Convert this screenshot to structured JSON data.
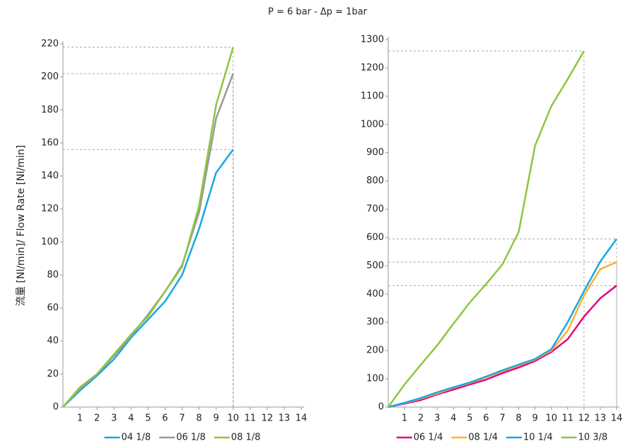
{
  "title": "P = 6 bar - Δp = 1bar",
  "chart_data": [
    {
      "type": "line",
      "ylabel": "流量 [Nl/min]/ Flow Rate [Nl/min]",
      "x": [
        0,
        1,
        2,
        3,
        4,
        5,
        6,
        7,
        8,
        9,
        10
      ],
      "xlim": [
        0,
        14
      ],
      "xticks": [
        1,
        2,
        3,
        4,
        5,
        6,
        7,
        8,
        9,
        10,
        11,
        12,
        13,
        14
      ],
      "ylim": [
        0,
        220
      ],
      "yticks": [
        0,
        20,
        40,
        60,
        80,
        100,
        120,
        140,
        160,
        180,
        200,
        220
      ],
      "series": [
        {
          "name": "04 1/8",
          "color": "#1aa7e0",
          "values": [
            0,
            10,
            19,
            29,
            42,
            53,
            64,
            80,
            108,
            142,
            156
          ]
        },
        {
          "name": "06 1/8",
          "color": "#999999",
          "values": [
            0,
            11,
            20,
            31,
            43,
            56,
            70,
            86,
            118,
            175,
            202
          ]
        },
        {
          "name": "08 1/8",
          "color": "#8dc63f",
          "values": [
            0,
            12,
            20,
            32,
            44,
            55,
            70,
            85,
            122,
            183,
            218
          ]
        }
      ]
    },
    {
      "type": "line",
      "x": [
        0,
        1,
        2,
        3,
        4,
        5,
        6,
        7,
        8,
        9,
        10,
        11,
        12,
        13,
        14
      ],
      "xlim": [
        0,
        14
      ],
      "xticks": [
        1,
        2,
        3,
        4,
        5,
        6,
        7,
        8,
        9,
        10,
        11,
        12,
        13,
        14
      ],
      "ylim": [
        0,
        1300
      ],
      "yticks": [
        0,
        100,
        200,
        300,
        400,
        500,
        600,
        700,
        800,
        900,
        1000,
        1100,
        1200,
        1300
      ],
      "series": [
        {
          "name": "06 1/4",
          "color": "#e5007e",
          "values": [
            0,
            12,
            25,
            45,
            62,
            80,
            97,
            120,
            140,
            163,
            195,
            240,
            320,
            385,
            430
          ]
        },
        {
          "name": "08 1/4",
          "color": "#f9b233",
          "values": [
            0,
            14,
            30,
            48,
            68,
            85,
            105,
            127,
            147,
            168,
            200,
            270,
            395,
            488,
            513
          ]
        },
        {
          "name": "10 1/4",
          "color": "#1aa7e0",
          "values": [
            0,
            15,
            32,
            52,
            70,
            87,
            108,
            130,
            150,
            170,
            205,
            300,
            410,
            515,
            595
          ]
        },
        {
          "name": "10 3/8",
          "color": "#8dc63f",
          "values": [
            0,
            80,
            150,
            218,
            295,
            370,
            435,
            505,
            620,
            925,
            1065,
            1160,
            1260,
            null,
            null
          ]
        }
      ]
    }
  ]
}
